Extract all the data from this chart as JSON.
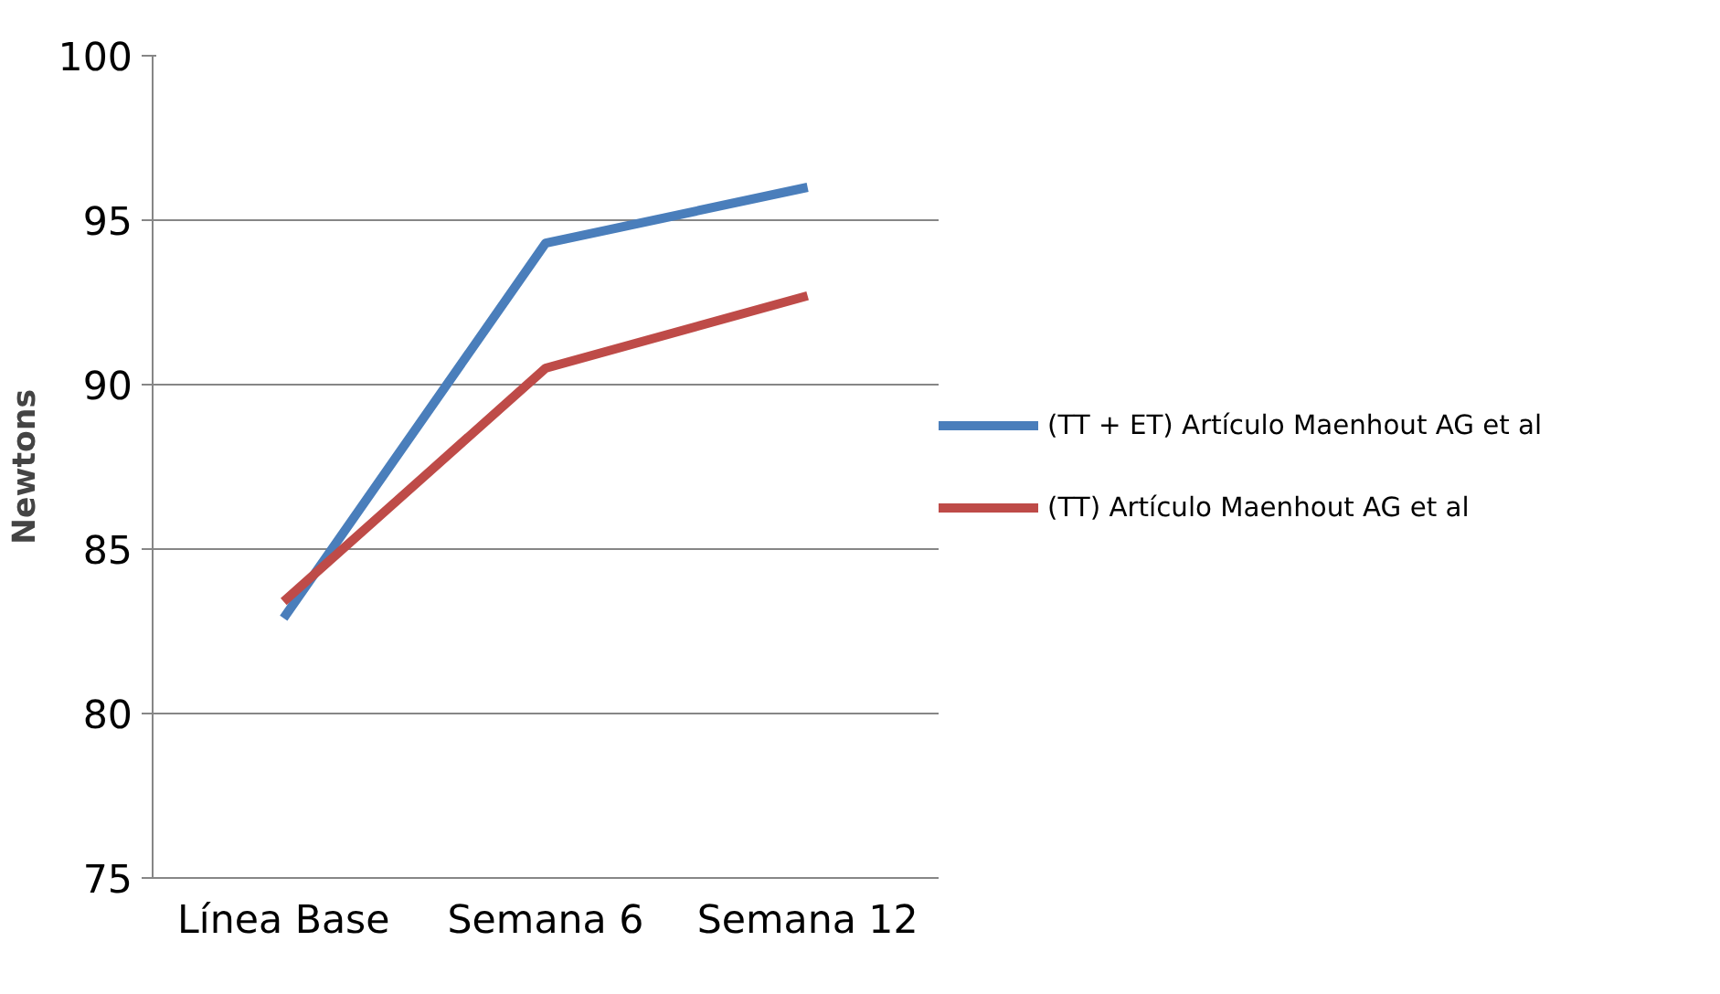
{
  "chart_data": {
    "type": "line",
    "ylabel": "Newtons",
    "categories": [
      "Línea Base",
      "Semana 6",
      "Semana 12"
    ],
    "series": [
      {
        "name": "(TT + ET) Artículo Maenhout AG et al",
        "color": "#4a7ebb",
        "values": [
          82.9,
          94.3,
          96.0
        ]
      },
      {
        "name": "(TT) Artículo Maenhout AG et al",
        "color": "#be4b48",
        "values": [
          83.4,
          90.5,
          92.7
        ]
      }
    ],
    "ylim": [
      75,
      100
    ],
    "yticks": [
      75,
      80,
      85,
      90,
      95,
      100
    ],
    "grid": "y",
    "legend": "right",
    "marker": "none",
    "line_style": "solid"
  }
}
